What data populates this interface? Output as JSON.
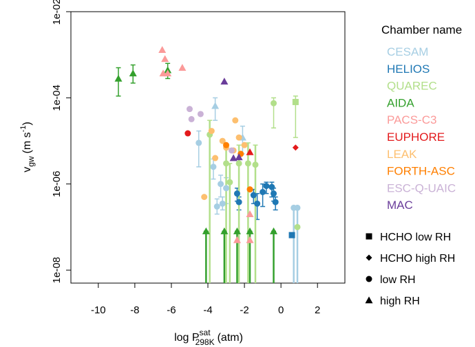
{
  "chart_data": {
    "type": "scatter",
    "xlabel": "log P",
    "xlabel_sup": "sat",
    "xlabel_sub": "298K",
    "xlabel_tail": "(atm)",
    "ylabel": "v",
    "ylabel_sub": "gw",
    "ylabel_tail": "(m s",
    "ylabel_sup": "-1",
    "ylabel_close": ")",
    "y_scale": "log10",
    "xlim": [
      -11.5,
      3.5
    ],
    "ylim": [
      5e-09,
      0.01
    ],
    "x_ticks": [
      -10,
      -8,
      -6,
      -4,
      -2,
      0,
      2
    ],
    "x_tick_labels": [
      "-10",
      "-8",
      "-6",
      "-4",
      "-2",
      "0",
      "2"
    ],
    "y_ticks": [
      1e-08,
      1e-06,
      0.0001,
      0.01
    ],
    "y_tick_labels": [
      "1e-08",
      "1e-06",
      "1e-04",
      "1e-02"
    ],
    "legend": {
      "title": "Chamber name",
      "placement": "right",
      "entries": [
        {
          "name": "CESAM",
          "color": "#a6cee3"
        },
        {
          "name": "HELIOS",
          "color": "#1f78b4"
        },
        {
          "name": "QUAREC",
          "color": "#b2df8a"
        },
        {
          "name": "AIDA",
          "color": "#33a02c"
        },
        {
          "name": "PACS-C3",
          "color": "#fb9a99"
        },
        {
          "name": "EUPHORE",
          "color": "#e31a1c"
        },
        {
          "name": "LEAK",
          "color": "#fdbf6f"
        },
        {
          "name": "FORTH-ASC",
          "color": "#ff7f00"
        },
        {
          "name": "ESC-Q-UAIC",
          "color": "#cab2d6"
        },
        {
          "name": "MAC",
          "color": "#6a3d9a"
        }
      ],
      "shapes": [
        {
          "name": "HCHO low RH",
          "shape": "square"
        },
        {
          "name": "HCHO high RH",
          "shape": "diamond"
        },
        {
          "name": "low RH",
          "shape": "circle"
        },
        {
          "name": "high RH",
          "shape": "triangle"
        }
      ]
    },
    "points": [
      {
        "chamber": "AIDA",
        "shape": "triangle",
        "x": -8.9,
        "y": 0.00028,
        "lo": 0.00011,
        "hi": 0.0005
      },
      {
        "chamber": "AIDA",
        "shape": "triangle",
        "x": -8.1,
        "y": 0.00037,
        "lo": 0.00022,
        "hi": 0.00058
      },
      {
        "chamber": "AIDA",
        "shape": "triangle",
        "x": -6.2,
        "y": 0.00044,
        "lo": 0.00028,
        "hi": 0.00063
      },
      {
        "chamber": "PACS-C3",
        "shape": "triangle",
        "x": -6.5,
        "y": 0.0013
      },
      {
        "chamber": "PACS-C3",
        "shape": "triangle",
        "x": -6.35,
        "y": 0.0008
      },
      {
        "chamber": "PACS-C3",
        "shape": "triangle",
        "x": -6.45,
        "y": 0.00037
      },
      {
        "chamber": "PACS-C3",
        "shape": "triangle",
        "x": -6.2,
        "y": 0.00037
      },
      {
        "chamber": "PACS-C3",
        "shape": "triangle",
        "x": -5.4,
        "y": 0.0005
      },
      {
        "chamber": "MAC",
        "shape": "triangle",
        "x": -3.1,
        "y": 0.00024
      },
      {
        "chamber": "CESAM",
        "shape": "triangle",
        "x": -3.6,
        "y": 6.5e-05,
        "lo": 3e-05,
        "hi": 0.0001
      },
      {
        "chamber": "CESAM",
        "shape": "circle",
        "x": -4.5,
        "y": 9e-06,
        "lo": 2.5e-06,
        "hi": 1.7e-05
      },
      {
        "chamber": "CESAM",
        "shape": "circle",
        "x": -3.7,
        "y": 2.5e-06,
        "lo": 1.3e-06,
        "hi": 3.8e-06
      },
      {
        "chamber": "CESAM",
        "shape": "circle",
        "x": -3.3,
        "y": 1e-06,
        "lo": 5e-07,
        "hi": 1.6e-06
      },
      {
        "chamber": "CESAM",
        "shape": "circle",
        "x": -3.0,
        "y": 8e-07,
        "lo": 3.5e-07,
        "hi": 1.4e-06
      },
      {
        "chamber": "CESAM",
        "shape": "circle",
        "x": -3.5,
        "y": 3e-07,
        "lo": 2e-07,
        "hi": 4.5e-07
      },
      {
        "chamber": "CESAM",
        "shape": "circle",
        "x": -3.2,
        "y": 3.5e-07,
        "lo": 2.5e-07,
        "hi": 5e-07
      },
      {
        "chamber": "CESAM",
        "shape": "triangle",
        "x": -2.1,
        "y": 1.2e-05,
        "lo": 5e-06,
        "hi": 2.2e-05
      },
      {
        "chamber": "CESAM",
        "shape": "circle",
        "x": 0.7,
        "y": 2.8e-07,
        "lo": 5e-09,
        "hi": 2.8e-07
      },
      {
        "chamber": "CESAM",
        "shape": "circle",
        "x": 0.9,
        "y": 2.8e-07,
        "lo": 5e-09,
        "hi": 2.8e-07
      },
      {
        "chamber": "HELIOS",
        "shape": "circle",
        "x": -2.4,
        "y": 6e-07,
        "lo": 4e-07,
        "hi": 8e-07
      },
      {
        "chamber": "HELIOS",
        "shape": "circle",
        "x": -2.3,
        "y": 3.8e-07,
        "lo": 2.5e-07,
        "hi": 5e-07
      },
      {
        "chamber": "HELIOS",
        "shape": "circle",
        "x": -1.5,
        "y": 5.5e-07,
        "lo": 3.5e-07,
        "hi": 7.5e-07
      },
      {
        "chamber": "HELIOS",
        "shape": "circle",
        "x": -1.3,
        "y": 3.5e-07,
        "lo": 1.5e-07,
        "hi": 6e-07
      },
      {
        "chamber": "HELIOS",
        "shape": "circle",
        "x": -0.8,
        "y": 9e-07,
        "lo": 6e-07,
        "hi": 1.1e-06
      },
      {
        "chamber": "HELIOS",
        "shape": "circle",
        "x": -0.5,
        "y": 8.5e-07,
        "lo": 5e-07,
        "hi": 1.1e-06
      },
      {
        "chamber": "HELIOS",
        "shape": "circle",
        "x": -1.0,
        "y": 6.5e-07,
        "lo": 3e-07,
        "hi": 1e-06
      },
      {
        "chamber": "HELIOS",
        "shape": "circle",
        "x": -0.4,
        "y": 6e-07,
        "lo": 4e-07,
        "hi": 8e-07
      },
      {
        "chamber": "HELIOS",
        "shape": "circle",
        "x": -0.3,
        "y": 3.8e-07,
        "lo": 2.5e-07,
        "hi": 5e-07
      },
      {
        "chamber": "HELIOS",
        "shape": "square",
        "x": 0.6,
        "y": 6.5e-08
      },
      {
        "chamber": "QUAREC",
        "shape": "circle",
        "x": -0.4,
        "y": 7.5e-05,
        "lo": 2e-05,
        "hi": 0.0001
      },
      {
        "chamber": "QUAREC",
        "shape": "square",
        "x": 0.8,
        "y": 8e-05,
        "lo": 1.2e-05,
        "hi": 0.00011
      },
      {
        "chamber": "QUAREC",
        "shape": "circle",
        "x": 0.9,
        "y": 1e-07
      },
      {
        "chamber": "QUAREC",
        "shape": "circle",
        "x": -3.0,
        "y": 3e-06,
        "lo": 5e-09,
        "hi": 8e-06
      },
      {
        "chamber": "QUAREC",
        "shape": "circle",
        "x": -2.3,
        "y": 3e-06,
        "lo": 5e-09,
        "hi": 8e-06
      },
      {
        "chamber": "QUAREC",
        "shape": "circle",
        "x": -1.8,
        "y": 3e-06,
        "lo": 5e-09,
        "hi": 9e-06
      },
      {
        "chamber": "QUAREC",
        "shape": "circle",
        "x": -1.4,
        "y": 2.8e-06,
        "lo": 5e-09,
        "hi": 8e-06
      },
      {
        "chamber": "QUAREC",
        "shape": "circle",
        "x": -2.8,
        "y": 1.1e-06,
        "lo": 5e-09,
        "hi": 3e-06
      },
      {
        "chamber": "QUAREC",
        "shape": "circle",
        "x": -3.9,
        "y": 1.4e-05,
        "lo": 5e-09,
        "hi": 3e-05
      },
      {
        "chamber": "AIDA",
        "shape": "triangle",
        "x": -4.1,
        "y": 8e-08,
        "lo": 5e-09,
        "hi": 8e-08
      },
      {
        "chamber": "AIDA",
        "shape": "triangle",
        "x": -3.1,
        "y": 8e-08,
        "lo": 5e-09,
        "hi": 8e-08
      },
      {
        "chamber": "AIDA",
        "shape": "triangle",
        "x": -2.4,
        "y": 8e-08,
        "lo": 5e-09,
        "hi": 8e-08
      },
      {
        "chamber": "AIDA",
        "shape": "triangle",
        "x": -1.7,
        "y": 8e-08,
        "lo": 5e-09,
        "hi": 8e-08
      },
      {
        "chamber": "AIDA",
        "shape": "triangle",
        "x": -0.4,
        "y": 8e-08,
        "lo": 5e-09,
        "hi": 8e-08
      },
      {
        "chamber": "PACS-C3",
        "shape": "triangle",
        "x": -2.4,
        "y": 5e-08
      },
      {
        "chamber": "PACS-C3",
        "shape": "triangle",
        "x": -1.7,
        "y": 5e-08
      },
      {
        "chamber": "PACS-C3",
        "shape": "triangle",
        "x": -1.7,
        "y": 2e-07
      },
      {
        "chamber": "EUPHORE",
        "shape": "circle",
        "x": -5.1,
        "y": 1.5e-05
      },
      {
        "chamber": "EUPHORE",
        "shape": "triangle",
        "x": -1.7,
        "y": 5.5e-06
      },
      {
        "chamber": "EUPHORE",
        "shape": "diamond",
        "x": 0.8,
        "y": 7e-06
      },
      {
        "chamber": "LEAK",
        "shape": "circle",
        "x": -4.2,
        "y": 5e-07
      },
      {
        "chamber": "LEAK",
        "shape": "circle",
        "x": -3.8,
        "y": 1.7e-05
      },
      {
        "chamber": "LEAK",
        "shape": "circle",
        "x": -3.2,
        "y": 1e-05
      },
      {
        "chamber": "LEAK",
        "shape": "circle",
        "x": -3.0,
        "y": 7e-06
      },
      {
        "chamber": "LEAK",
        "shape": "circle",
        "x": -2.6,
        "y": 6e-06
      },
      {
        "chamber": "LEAK",
        "shape": "circle",
        "x": -2.5,
        "y": 3e-05
      },
      {
        "chamber": "LEAK",
        "shape": "circle",
        "x": -2.3,
        "y": 1.2e-05
      },
      {
        "chamber": "LEAK",
        "shape": "circle",
        "x": -3.6,
        "y": 4e-06
      },
      {
        "chamber": "LEAK",
        "shape": "circle",
        "x": -2.0,
        "y": 8e-06
      },
      {
        "chamber": "FORTH-ASC",
        "shape": "circle",
        "x": -3.0,
        "y": 8e-06
      },
      {
        "chamber": "FORTH-ASC",
        "shape": "circle",
        "x": -2.2,
        "y": 5e-06
      },
      {
        "chamber": "FORTH-ASC",
        "shape": "circle",
        "x": -1.7,
        "y": 7.5e-07
      },
      {
        "chamber": "ESC-Q-UAIC",
        "shape": "circle",
        "x": -5.0,
        "y": 5.5e-05
      },
      {
        "chamber": "ESC-Q-UAIC",
        "shape": "circle",
        "x": -4.9,
        "y": 3.2e-05
      },
      {
        "chamber": "ESC-Q-UAIC",
        "shape": "circle",
        "x": -4.4,
        "y": 4.2e-05
      },
      {
        "chamber": "ESC-Q-UAIC",
        "shape": "circle",
        "x": -2.7,
        "y": 6e-06
      },
      {
        "chamber": "MAC",
        "shape": "triangle",
        "x": -2.6,
        "y": 4e-06
      },
      {
        "chamber": "MAC",
        "shape": "triangle",
        "x": -2.3,
        "y": 4.2e-06
      }
    ]
  }
}
